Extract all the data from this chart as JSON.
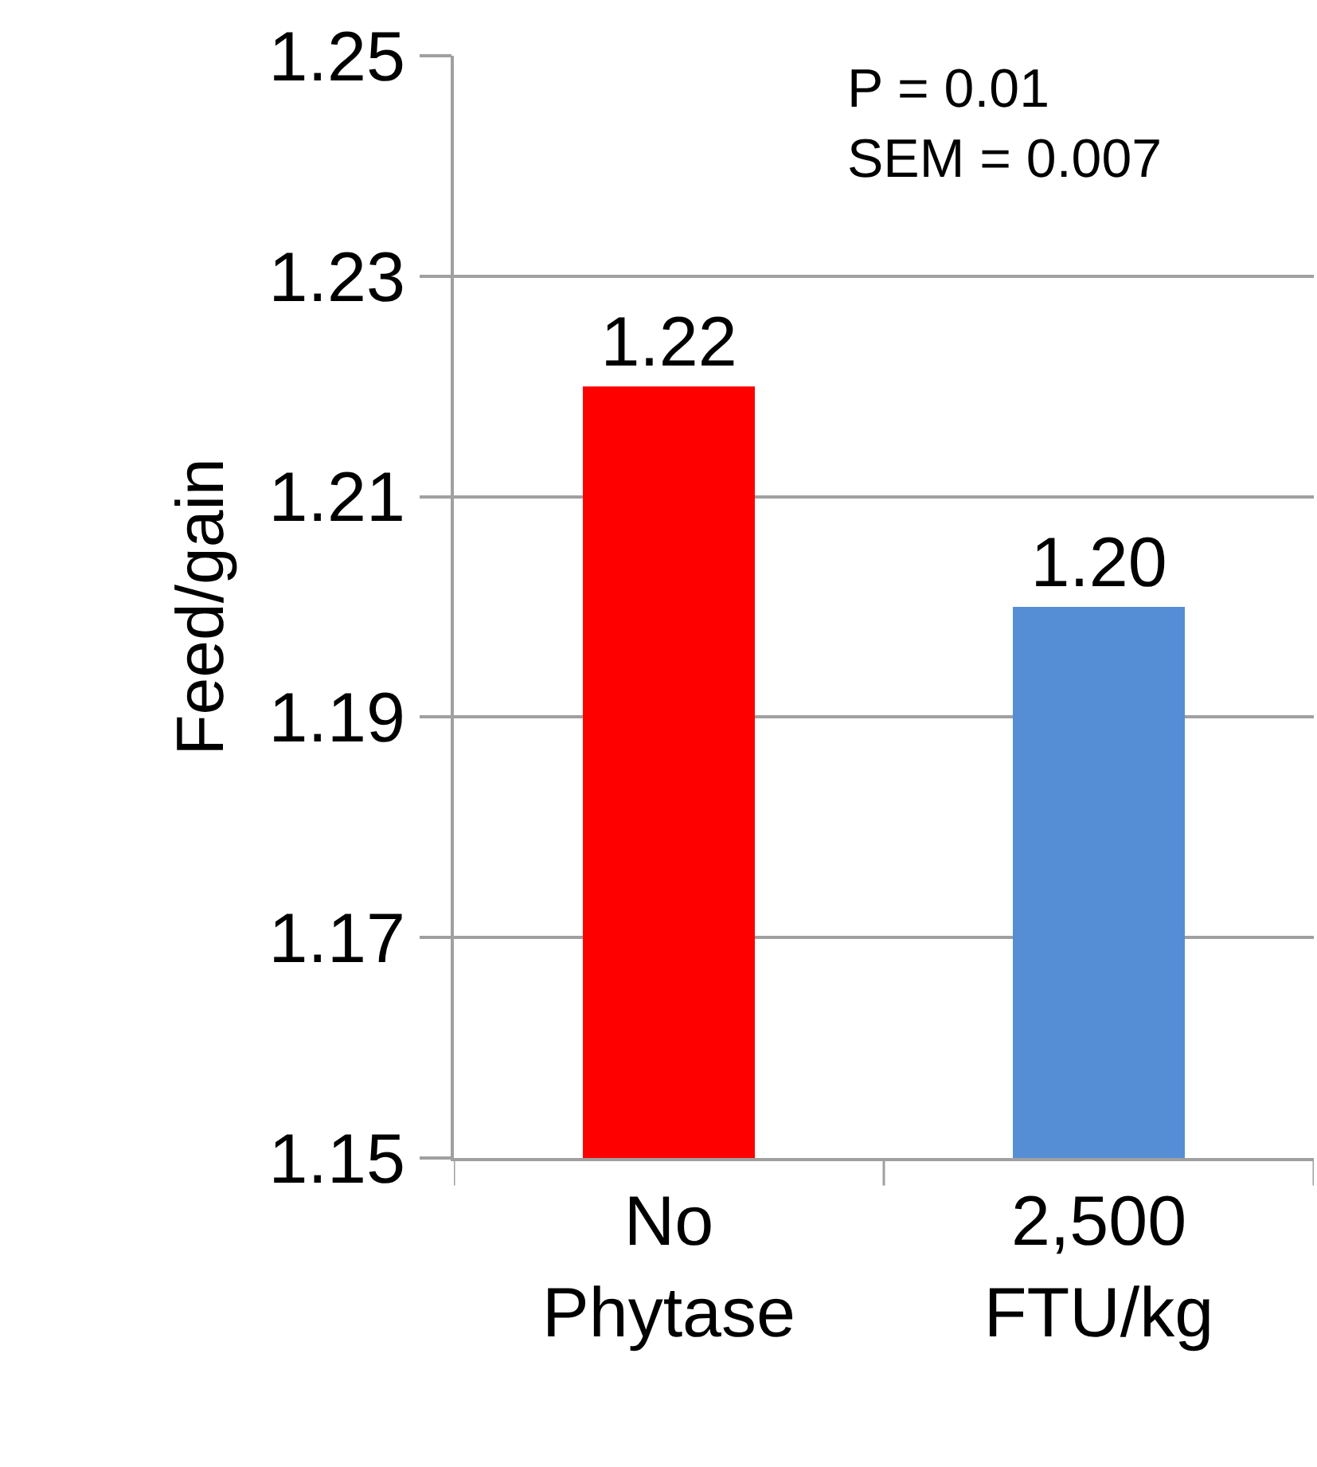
{
  "chart_data": {
    "type": "bar",
    "ylabel": "Feed/gain",
    "categories": [
      "No\nPhytase",
      "2,500\nFTU/kg"
    ],
    "values": [
      1.22,
      1.2
    ],
    "colors": [
      "#ff0000",
      "#558ed5"
    ],
    "value_labels": [
      "1.22",
      "1.20"
    ],
    "ylim": [
      1.15,
      1.25
    ],
    "yticks": [
      1.15,
      1.17,
      1.19,
      1.21,
      1.23,
      1.25
    ],
    "grid": "y",
    "legend": false,
    "annotations": [
      "P = 0.01\nSEM = 0.007"
    ]
  }
}
